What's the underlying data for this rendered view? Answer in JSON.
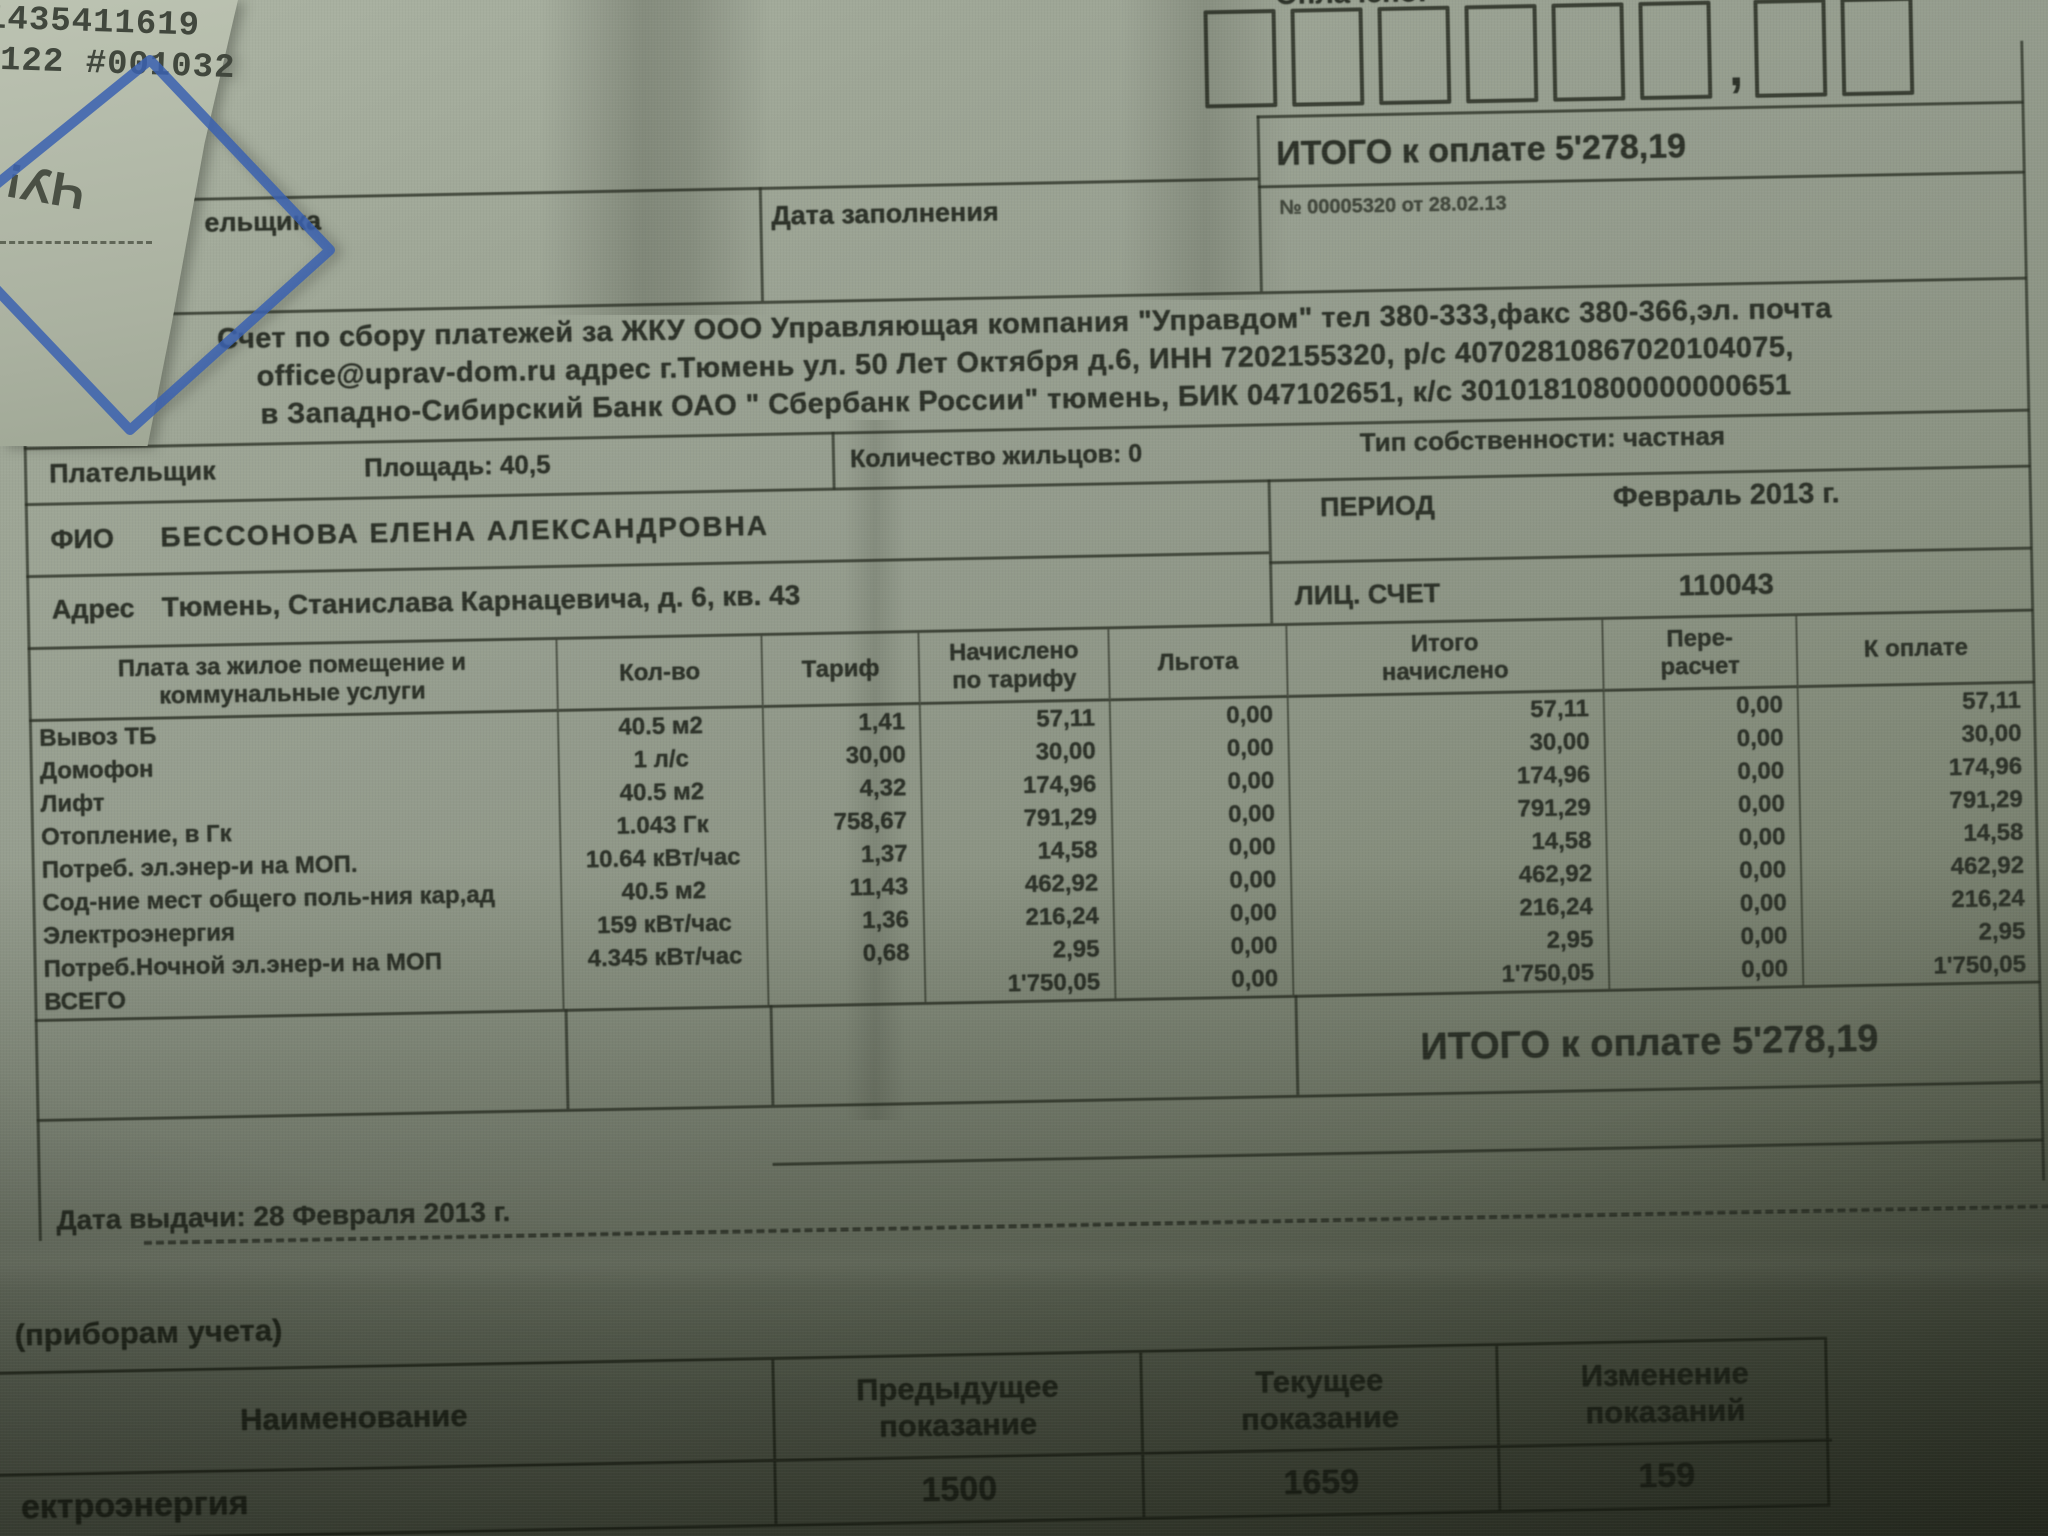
{
  "colors": {
    "paper": "#99a192",
    "ink": "#2d3229",
    "pen_blue": "#3b62b0"
  },
  "stub": {
    "line1": "1435411619",
    "line2": "122 #001032",
    "mark": "ЧУ!"
  },
  "paid": {
    "label": "Оплачено:",
    "comma": ","
  },
  "top": {
    "payer_cell": "ельщика",
    "date_cell": "Дата заполнения",
    "total_due": "ИТОГО к оплате 5'278,19",
    "doc_no": "№ 00005320 от 28.02.13"
  },
  "header_lines": [
    "Счет по сбору платежей за ЖКУ ООО Управляющая компания \"Управдом\" тел 380-333,факс 380-366,эл. почта",
    "office@uprav-dom.ru адрес г.Тюмень ул. 50 Лет Октября д.6, ИНН 7202155320, р/с 40702810867020104075,",
    "в Западно-Сибирский Банк ОАО \" Сбербанк России\" тюмень, БИК 047102651, к/с 30101810800000000651"
  ],
  "info": {
    "payer_label": "Плательщик",
    "area": "Площадь: 40,5",
    "residents": "Количество жильцов:  0",
    "ownership": "Тип собственности:  частная",
    "fio_label": "ФИО",
    "fio_value": "БЕССОНОВА ЕЛЕНА АЛЕКСАНДРОВНА",
    "address_label": "Адрес",
    "address_value": "Тюмень, Станислава Карнацевича, д. 6, кв. 43",
    "period_label": "ПЕРИОД",
    "period_value": "Февраль 2013 г.",
    "account_label": "ЛИЦ. СЧЕТ",
    "account_value": "110043"
  },
  "charges_table": {
    "headers": [
      "Плата за жилое помещение и\nкоммунальные услуги",
      "Кол-во",
      "Тариф",
      "Начислено\nпо тарифу",
      "Льгота",
      "Итого\nначислено",
      "Пере-\nрасчет",
      "К оплате"
    ],
    "rows": [
      [
        "Вывоз ТБ",
        "40.5 м2",
        "1,41",
        "57,11",
        "0,00",
        "57,11",
        "0,00",
        "57,11"
      ],
      [
        "Домофон",
        "1 л/с",
        "30,00",
        "30,00",
        "0,00",
        "30,00",
        "0,00",
        "30,00"
      ],
      [
        "Лифт",
        "40.5 м2",
        "4,32",
        "174,96",
        "0,00",
        "174,96",
        "0,00",
        "174,96"
      ],
      [
        "Отопление,  в Гк",
        "1.043 Гк",
        "758,67",
        "791,29",
        "0,00",
        "791,29",
        "0,00",
        "791,29"
      ],
      [
        "Потреб. эл.энер-и на МОП.",
        "10.64 кВт/час",
        "1,37",
        "14,58",
        "0,00",
        "14,58",
        "0,00",
        "14,58"
      ],
      [
        "Сод-ние мест общего поль-ния  кар,ад",
        "40.5 м2",
        "11,43",
        "462,92",
        "0,00",
        "462,92",
        "0,00",
        "462,92"
      ],
      [
        "Электроэнергия",
        "159 кВт/час",
        "1,36",
        "216,24",
        "0,00",
        "216,24",
        "0,00",
        "216,24"
      ],
      [
        "Потреб.Ночной эл.энер-и на МОП",
        "4.345 кВт/час",
        "0,68",
        "2,95",
        "0,00",
        "2,95",
        "0,00",
        "2,95"
      ],
      [
        "ВСЕГО",
        "",
        "",
        "1'750,05",
        "0,00",
        "1'750,05",
        "0,00",
        "1'750,05"
      ]
    ]
  },
  "summary": {
    "total_due": "ИТОГО к оплате 5'278,19"
  },
  "issue": {
    "date_line": "Дата выдачи: 28 Февраля 2013 г."
  },
  "meters": {
    "section_label": "(приборам учета)",
    "headers": [
      "Наименование",
      "Предыдущее\nпоказание",
      "Текущее\nпоказание",
      "Изменение\nпоказаний"
    ],
    "rows": [
      [
        "ектроэнергия",
        "1500",
        "1659",
        "159"
      ]
    ]
  }
}
